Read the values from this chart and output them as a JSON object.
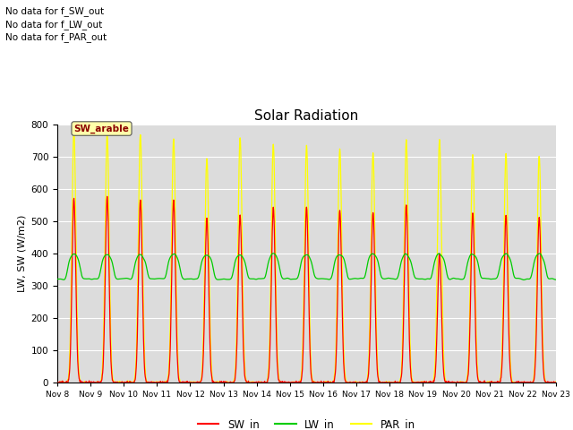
{
  "title": "Solar Radiation",
  "ylabel": "LW, SW (W/m2)",
  "ylim": [
    0,
    800
  ],
  "yticks": [
    0,
    100,
    200,
    300,
    400,
    500,
    600,
    700,
    800
  ],
  "xtick_labels": [
    "Nov 8",
    "Nov 9",
    "Nov 10",
    "Nov 11",
    "Nov 12",
    "Nov 13",
    "Nov 14",
    "Nov 15",
    "Nov 16",
    "Nov 17",
    "Nov 18",
    "Nov 19",
    "Nov 20",
    "Nov 21",
    "Nov 22",
    "Nov 23"
  ],
  "SW_color": "#ff0000",
  "LW_color": "#00cc00",
  "PAR_color": "#ffff00",
  "legend_labels": [
    "SW_in",
    "LW_in",
    "PAR_in"
  ],
  "legend_colors": [
    "#ff0000",
    "#00cc00",
    "#ffff00"
  ],
  "bg_color": "#dcdcdc",
  "annotation_text": "SW_arable",
  "messages": [
    "No data for f_SW_out",
    "No data for f_LW_out",
    "No data for f_PAR_out"
  ],
  "SW_peaks": [
    570,
    575,
    570,
    565,
    510,
    520,
    545,
    545,
    535,
    530,
    555,
    400,
    525,
    520,
    515
  ],
  "PAR_peaks": [
    780,
    770,
    770,
    755,
    695,
    760,
    740,
    735,
    725,
    710,
    750,
    755,
    705,
    710,
    705
  ],
  "LW_base": 330,
  "LW_peak_add": 70
}
